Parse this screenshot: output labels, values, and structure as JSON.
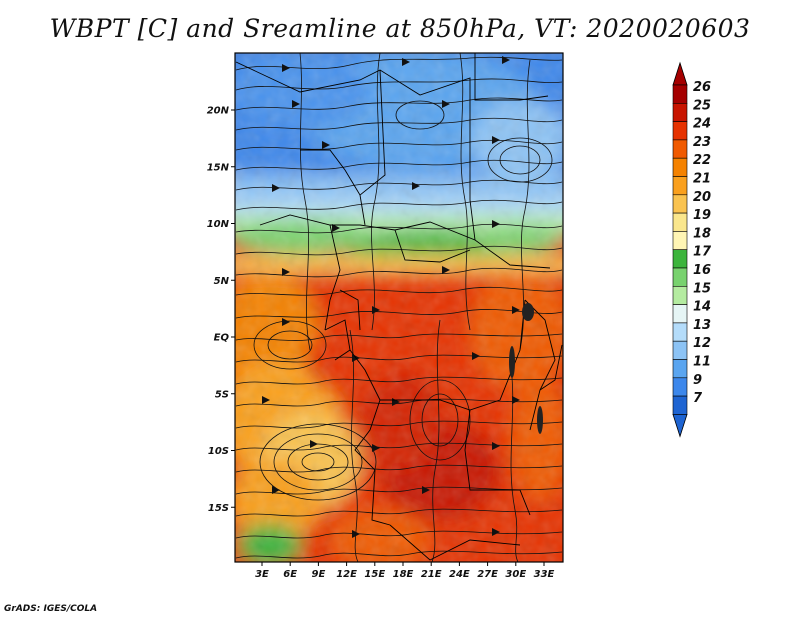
{
  "title": "WBPT [C] and Sreamline at 850hPa, VT: 2020020603",
  "credit": "GrADS: IGES/COLA",
  "map": {
    "lat_labels": [
      {
        "text": "20N",
        "lat": 20
      },
      {
        "text": "15N",
        "lat": 15
      },
      {
        "text": "10N",
        "lat": 10
      },
      {
        "text": "5N",
        "lat": 5
      },
      {
        "text": "EQ",
        "lat": 0
      },
      {
        "text": "5S",
        "lat": -5
      },
      {
        "text": "10S",
        "lat": -10
      },
      {
        "text": "15S",
        "lat": -15
      }
    ],
    "lon_labels": [
      {
        "text": "3E",
        "lon": 3
      },
      {
        "text": "6E",
        "lon": 6
      },
      {
        "text": "9E",
        "lon": 9
      },
      {
        "text": "12E",
        "lon": 12
      },
      {
        "text": "15E",
        "lon": 15
      },
      {
        "text": "18E",
        "lon": 18
      },
      {
        "text": "21E",
        "lon": 21
      },
      {
        "text": "24E",
        "lon": 24
      },
      {
        "text": "27E",
        "lon": 27
      },
      {
        "text": "30E",
        "lon": 30
      },
      {
        "text": "33E",
        "lon": 33
      }
    ]
  },
  "colorbar": {
    "labels": [
      "26",
      "25",
      "24",
      "23",
      "22",
      "21",
      "20",
      "19",
      "18",
      "17",
      "16",
      "15",
      "14",
      "13",
      "12",
      "11",
      "9",
      "7"
    ],
    "colors": [
      "#a50000",
      "#c81400",
      "#e63200",
      "#f05a00",
      "#f58200",
      "#faa01e",
      "#fac350",
      "#fae68c",
      "#fff5b4",
      "#3cb43c",
      "#78d26e",
      "#b4eba0",
      "#e6f5f5",
      "#b4dcfa",
      "#8cc3f5",
      "#5aa5f0",
      "#3c87eb",
      "#1e64d2"
    ],
    "top_color": "#a50000",
    "bottom_color": "#1e64d2"
  }
}
